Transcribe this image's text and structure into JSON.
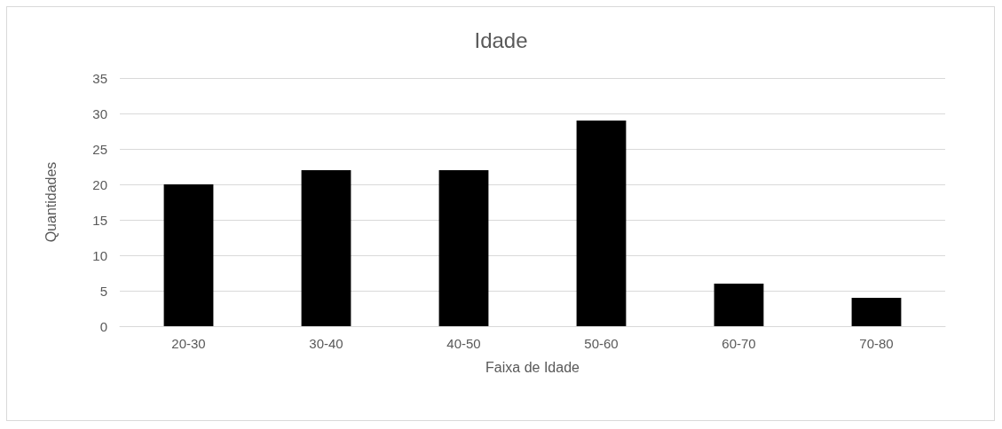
{
  "chart_data": {
    "type": "bar",
    "title": "Idade",
    "xlabel": "Faixa de Idade",
    "ylabel": "Quantidades",
    "categories": [
      "20-30",
      "30-40",
      "40-50",
      "50-60",
      "60-70",
      "70-80"
    ],
    "values": [
      20,
      22,
      22,
      29,
      6,
      4
    ],
    "color": "#000000",
    "ylim": [
      0,
      35
    ],
    "yticks": [
      0,
      5,
      10,
      15,
      20,
      25,
      30,
      35
    ],
    "grid": "y"
  }
}
